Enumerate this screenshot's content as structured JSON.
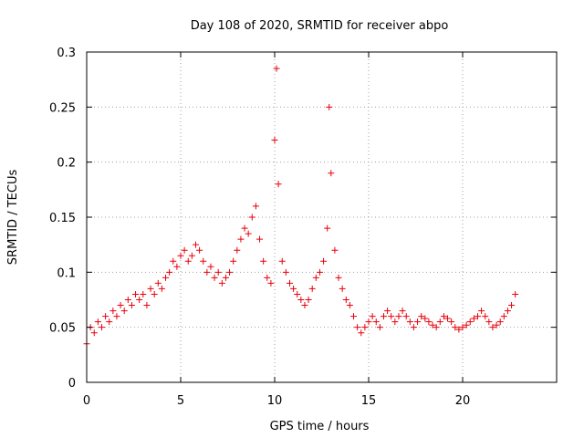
{
  "chart_data": {
    "type": "scatter",
    "title": "Day 108 of 2020, SRMTID for receiver abpo",
    "xlabel": "GPS time / hours",
    "ylabel": "SRMTID / TECUs",
    "xlim": [
      0,
      25
    ],
    "ylim": [
      0,
      0.3
    ],
    "grid": true,
    "marker": "+",
    "x_ticks": [
      0,
      5,
      10,
      15,
      20
    ],
    "x_tick_labels": [
      "0",
      "5",
      "10",
      "15",
      "20"
    ],
    "y_ticks": [
      0,
      0.05,
      0.1,
      0.15,
      0.2,
      0.25,
      0.3
    ],
    "y_tick_labels": [
      "0",
      "0.05",
      "0.1",
      "0.15",
      "0.2",
      "0.25",
      "0.3"
    ],
    "series": [
      {
        "name": "SRMTID",
        "color": "#e8000b",
        "x": [
          0.0,
          0.2,
          0.4,
          0.6,
          0.8,
          1.0,
          1.2,
          1.4,
          1.6,
          1.8,
          2.0,
          2.2,
          2.4,
          2.6,
          2.8,
          3.0,
          3.2,
          3.4,
          3.6,
          3.8,
          4.0,
          4.2,
          4.4,
          4.6,
          4.8,
          5.0,
          5.2,
          5.4,
          5.6,
          5.8,
          6.0,
          6.2,
          6.4,
          6.6,
          6.8,
          7.0,
          7.2,
          7.4,
          7.6,
          7.8,
          8.0,
          8.2,
          8.4,
          8.6,
          8.8,
          9.0,
          9.2,
          9.4,
          9.6,
          9.8,
          10.0,
          10.1,
          10.2,
          10.4,
          10.6,
          10.8,
          11.0,
          11.2,
          11.4,
          11.6,
          11.8,
          12.0,
          12.2,
          12.4,
          12.6,
          12.8,
          12.9,
          13.0,
          13.2,
          13.4,
          13.6,
          13.8,
          14.0,
          14.2,
          14.4,
          14.6,
          14.8,
          15.0,
          15.2,
          15.4,
          15.6,
          15.8,
          16.0,
          16.2,
          16.4,
          16.6,
          16.8,
          17.0,
          17.2,
          17.4,
          17.6,
          17.8,
          18.0,
          18.2,
          18.4,
          18.6,
          18.8,
          19.0,
          19.2,
          19.4,
          19.6,
          19.8,
          20.0,
          20.2,
          20.4,
          20.6,
          20.8,
          21.0,
          21.2,
          21.4,
          21.6,
          21.8,
          22.0,
          22.2,
          22.4,
          22.6,
          22.8
        ],
        "y": [
          0.035,
          0.05,
          0.045,
          0.055,
          0.05,
          0.06,
          0.055,
          0.065,
          0.06,
          0.07,
          0.065,
          0.075,
          0.07,
          0.08,
          0.075,
          0.08,
          0.07,
          0.085,
          0.08,
          0.09,
          0.085,
          0.095,
          0.1,
          0.11,
          0.105,
          0.115,
          0.12,
          0.11,
          0.115,
          0.125,
          0.12,
          0.11,
          0.1,
          0.105,
          0.095,
          0.1,
          0.09,
          0.095,
          0.1,
          0.11,
          0.12,
          0.13,
          0.14,
          0.135,
          0.15,
          0.16,
          0.13,
          0.11,
          0.095,
          0.09,
          0.22,
          0.285,
          0.18,
          0.11,
          0.1,
          0.09,
          0.085,
          0.08,
          0.075,
          0.07,
          0.075,
          0.085,
          0.095,
          0.1,
          0.11,
          0.14,
          0.25,
          0.19,
          0.12,
          0.095,
          0.085,
          0.075,
          0.07,
          0.06,
          0.05,
          0.045,
          0.05,
          0.055,
          0.06,
          0.055,
          0.05,
          0.06,
          0.065,
          0.06,
          0.055,
          0.06,
          0.065,
          0.06,
          0.055,
          0.05,
          0.055,
          0.06,
          0.058,
          0.055,
          0.052,
          0.05,
          0.055,
          0.06,
          0.058,
          0.055,
          0.05,
          0.048,
          0.05,
          0.052,
          0.055,
          0.058,
          0.06,
          0.065,
          0.06,
          0.055,
          0.05,
          0.052,
          0.055,
          0.06,
          0.065,
          0.07,
          0.08
        ]
      }
    ]
  }
}
